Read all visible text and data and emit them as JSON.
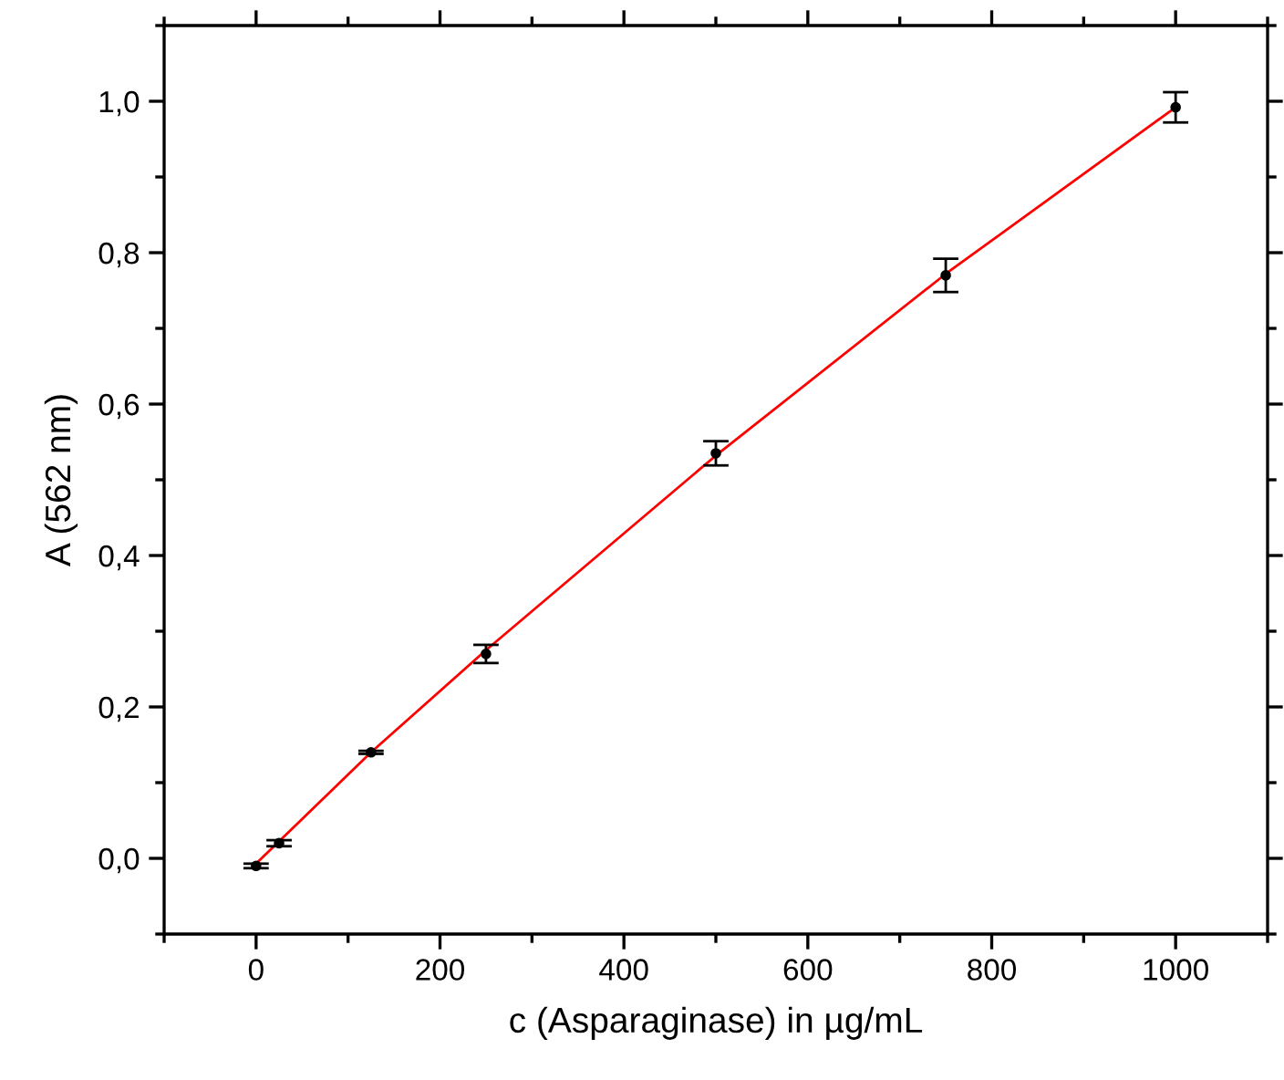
{
  "chart_data": {
    "type": "scatter",
    "xlabel": "c (Asparaginase) in µg/mL",
    "ylabel": "A (562 nm)",
    "xlim": [
      -100,
      1100
    ],
    "xticks": [
      0,
      200,
      400,
      600,
      800,
      1000
    ],
    "ylim": [
      -0.1,
      1.1
    ],
    "yticks": [
      {
        "value": 0,
        "label": "0,0"
      },
      {
        "value": 0.2,
        "label": "0,2"
      },
      {
        "value": 0.4,
        "label": "0,4"
      },
      {
        "value": 0.6,
        "label": "0,6"
      },
      {
        "value": 0.8,
        "label": "0,8"
      },
      {
        "value": 1.0,
        "label": "1,0"
      }
    ],
    "grid": false,
    "series": [
      {
        "type": "line",
        "color": "#ff0000",
        "marker": "none",
        "line_style": "solid",
        "x": [
          0,
          125,
          250,
          500,
          750,
          1000
        ],
        "values": [
          -0.007,
          0.14,
          0.275,
          0.532,
          0.772,
          0.992
        ]
      },
      {
        "marker": "circle",
        "color": "#000000",
        "x": [
          0,
          25,
          125,
          250,
          500,
          750,
          1000
        ],
        "values": [
          -0.01,
          0.02,
          0.14,
          0.27,
          0.535,
          0.77,
          0.992
        ],
        "errors": [
          0.003,
          0.004,
          0.002,
          0.012,
          0.016,
          0.022,
          0.02
        ]
      }
    ]
  }
}
